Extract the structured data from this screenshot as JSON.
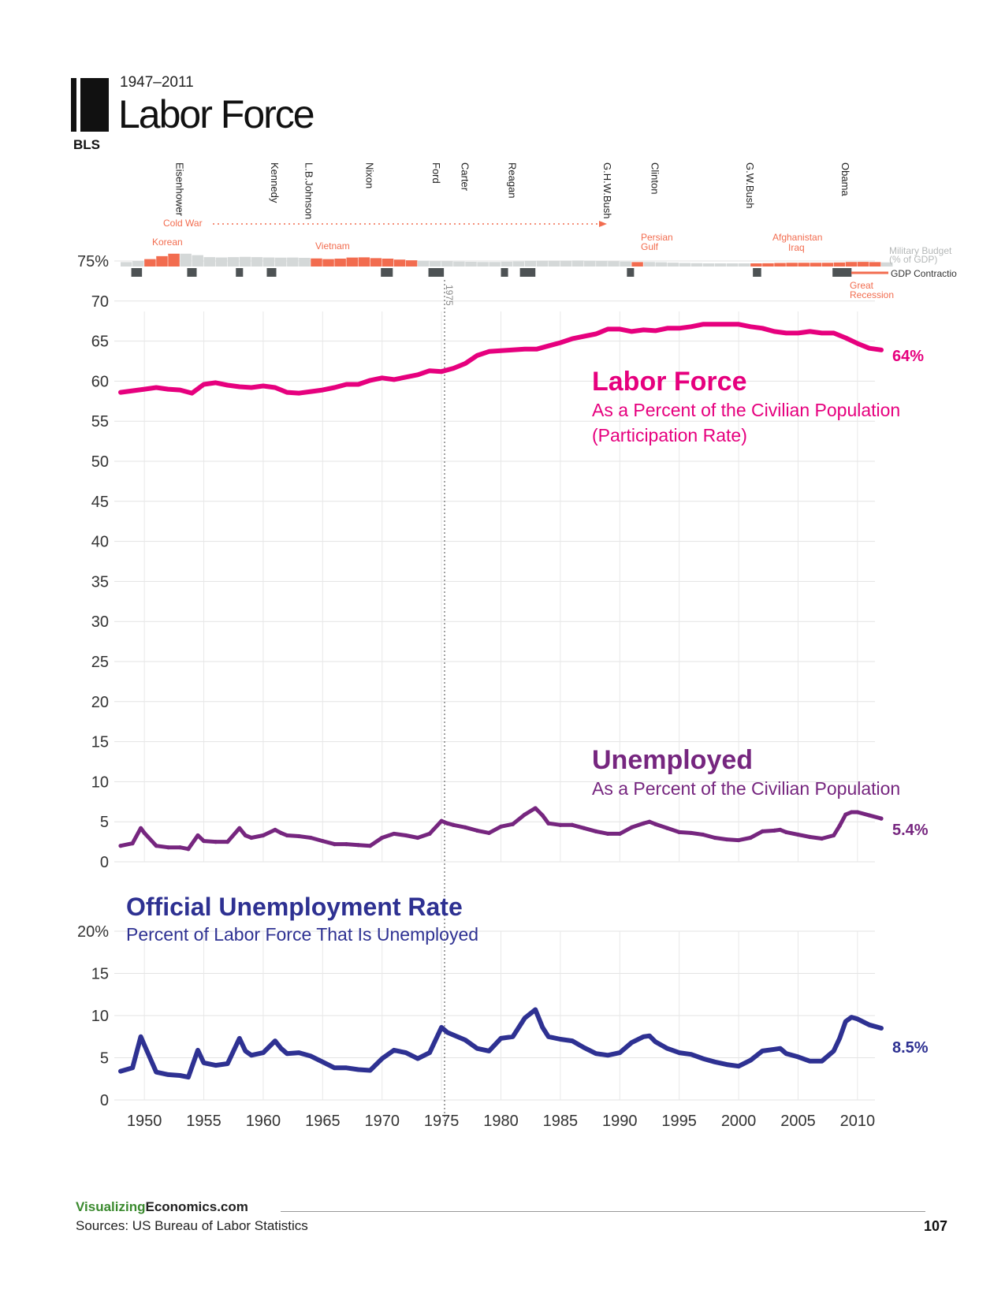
{
  "header": {
    "years": "1947–2011",
    "title": "Labor Force",
    "source_tag": "BLS"
  },
  "presidents": [
    "Eisenhower",
    "Kennedy",
    "L.B.Johnson",
    "Nixon",
    "Ford",
    "Carter",
    "Reagan",
    "G.H.W.Bush",
    "Clinton",
    "G.W.Bush",
    "Obama"
  ],
  "president_years": [
    1953.0,
    1961.0,
    1963.9,
    1969.0,
    1974.6,
    1977.0,
    1981.0,
    1989.0,
    1993.0,
    2001.0,
    2009.0
  ],
  "events": {
    "cold_war": "Cold War",
    "korean": "Korean",
    "vietnam": "Vietnam",
    "persian_gulf_1": "Persian",
    "persian_gulf_2": "Gulf",
    "afghanistan": "Afghanistan",
    "iraq": "Iraq",
    "great_recession_1": "Great",
    "great_recession_2": "Recession",
    "military_budget_1": "Military Budget",
    "military_budget_2": "(% of GDP)",
    "gdp_contraction": "GDP Contractio",
    "marker_1975": "1975"
  },
  "colors": {
    "labor": "#e6007e",
    "unemployed": "#76267f",
    "official": "#2e3192",
    "war": "#f26c4f",
    "budget_gray": "#d4d8d8",
    "recession": "#4d5254"
  },
  "chart_data": [
    {
      "type": "line",
      "title": "Labor Force",
      "subtitle_line1": "As a Percent of the Civilian Population",
      "subtitle_line2": "(Participation Rate)",
      "end_label": "64%",
      "axis_labels": [
        "75%",
        "70",
        "65",
        "60",
        "55",
        "50",
        "45",
        "40",
        "35",
        "30",
        "25",
        "20",
        "15",
        "10",
        "5",
        "0"
      ],
      "ylim": [
        0,
        75
      ],
      "xlim": [
        1948,
        2012
      ],
      "x": [
        1948,
        1949,
        1950,
        1951,
        1952,
        1953,
        1954,
        1955,
        1956,
        1957,
        1958,
        1959,
        1960,
        1961,
        1962,
        1963,
        1964,
        1965,
        1966,
        1967,
        1968,
        1969,
        1970,
        1971,
        1972,
        1973,
        1974,
        1975,
        1976,
        1977,
        1978,
        1979,
        1980,
        1981,
        1982,
        1983,
        1984,
        1985,
        1986,
        1987,
        1988,
        1989,
        1990,
        1991,
        1992,
        1993,
        1994,
        1995,
        1996,
        1997,
        1998,
        1999,
        2000,
        2001,
        2002,
        2003,
        2004,
        2005,
        2006,
        2007,
        2008,
        2009,
        2010,
        2011,
        2012
      ],
      "y": [
        58.6,
        58.8,
        59.0,
        59.2,
        59.0,
        58.9,
        58.5,
        59.6,
        59.8,
        59.5,
        59.3,
        59.2,
        59.4,
        59.2,
        58.6,
        58.5,
        58.7,
        58.9,
        59.2,
        59.6,
        59.6,
        60.1,
        60.4,
        60.2,
        60.5,
        60.8,
        61.3,
        61.2,
        61.6,
        62.2,
        63.2,
        63.7,
        63.8,
        63.9,
        64.0,
        64.0,
        64.4,
        64.8,
        65.3,
        65.6,
        65.9,
        66.5,
        66.5,
        66.2,
        66.4,
        66.3,
        66.6,
        66.6,
        66.8,
        67.1,
        67.1,
        67.1,
        67.1,
        66.8,
        66.6,
        66.2,
        66.0,
        66.0,
        66.2,
        66.0,
        66.0,
        65.4,
        64.7,
        64.1,
        63.9
      ]
    },
    {
      "type": "line",
      "title": "Unemployed",
      "subtitle_line1": "As a Percent of the Civilian Population",
      "end_label": "5.4%",
      "ylim": [
        0,
        75
      ],
      "xlim": [
        1948,
        2012
      ],
      "x": [
        1948,
        1949,
        1949.7,
        1950,
        1951,
        1952,
        1953,
        1953.7,
        1954.5,
        1955,
        1956,
        1957,
        1958,
        1958.5,
        1959,
        1960,
        1961,
        1961.5,
        1962,
        1963,
        1964,
        1965,
        1966,
        1967,
        1968,
        1969,
        1970,
        1971,
        1972,
        1973,
        1974,
        1975,
        1975.5,
        1976,
        1977,
        1978,
        1979,
        1980,
        1981,
        1982,
        1982.9,
        1983.5,
        1984,
        1985,
        1986,
        1987,
        1988,
        1989,
        1990,
        1991,
        1992,
        1992.5,
        1993,
        1994,
        1995,
        1996,
        1997,
        1998,
        1999,
        2000,
        2001,
        2002,
        2003,
        2003.5,
        2004,
        2005,
        2006,
        2007,
        2008,
        2008.5,
        2009,
        2009.5,
        2010,
        2011,
        2012
      ],
      "y": [
        2.0,
        2.3,
        4.2,
        3.6,
        2.0,
        1.8,
        1.8,
        1.6,
        3.3,
        2.6,
        2.5,
        2.5,
        4.2,
        3.3,
        3.0,
        3.3,
        4.0,
        3.6,
        3.3,
        3.2,
        3.0,
        2.6,
        2.2,
        2.2,
        2.1,
        2.0,
        3.0,
        3.5,
        3.3,
        3.0,
        3.5,
        5.1,
        4.8,
        4.6,
        4.3,
        3.9,
        3.6,
        4.4,
        4.7,
        5.9,
        6.7,
        5.8,
        4.8,
        4.6,
        4.6,
        4.2,
        3.8,
        3.5,
        3.5,
        4.3,
        4.8,
        5.0,
        4.7,
        4.2,
        3.7,
        3.6,
        3.4,
        3.0,
        2.8,
        2.7,
        3.0,
        3.8,
        3.9,
        4.0,
        3.7,
        3.4,
        3.1,
        2.9,
        3.3,
        4.5,
        5.9,
        6.2,
        6.2,
        5.8,
        5.4
      ]
    },
    {
      "type": "line",
      "title": "Official Unemployment Rate",
      "subtitle_line1": "Percent of Labor Force That Is Unemployed",
      "end_label": "8.5%",
      "axis_labels": [
        "20%",
        "15",
        "10",
        "5",
        "0"
      ],
      "x_tick_labels": [
        "1950",
        "1955",
        "1960",
        "1965",
        "1970",
        "1975",
        "1980",
        "1985",
        "1990",
        "1995",
        "2000",
        "2005",
        "2010"
      ],
      "ylim": [
        0,
        20
      ],
      "xlim": [
        1948,
        2012
      ],
      "x": [
        1948,
        1949,
        1949.7,
        1950,
        1951,
        1952,
        1953,
        1953.7,
        1954.5,
        1955,
        1956,
        1957,
        1958,
        1958.5,
        1959,
        1960,
        1961,
        1961.5,
        1962,
        1963,
        1964,
        1965,
        1966,
        1967,
        1968,
        1969,
        1970,
        1971,
        1972,
        1973,
        1974,
        1975,
        1975.5,
        1976,
        1977,
        1978,
        1979,
        1980,
        1981,
        1982,
        1982.9,
        1983.5,
        1984,
        1985,
        1986,
        1987,
        1988,
        1989,
        1990,
        1991,
        1992,
        1992.5,
        1993,
        1994,
        1995,
        1996,
        1997,
        1998,
        1999,
        2000,
        2001,
        2002,
        2003,
        2003.5,
        2004,
        2005,
        2006,
        2007,
        2008,
        2008.5,
        2009,
        2009.5,
        2010,
        2011,
        2012
      ],
      "y": [
        3.4,
        3.8,
        7.5,
        6.5,
        3.3,
        3.0,
        2.9,
        2.7,
        5.9,
        4.4,
        4.1,
        4.3,
        7.3,
        5.8,
        5.3,
        5.6,
        7.0,
        6.1,
        5.5,
        5.6,
        5.2,
        4.5,
        3.8,
        3.8,
        3.6,
        3.5,
        4.9,
        5.9,
        5.6,
        4.9,
        5.6,
        8.6,
        8.0,
        7.7,
        7.1,
        6.1,
        5.8,
        7.3,
        7.5,
        9.7,
        10.7,
        8.6,
        7.5,
        7.2,
        7.0,
        6.2,
        5.5,
        5.3,
        5.6,
        6.8,
        7.5,
        7.6,
        6.9,
        6.1,
        5.6,
        5.4,
        4.9,
        4.5,
        4.2,
        4.0,
        4.7,
        5.8,
        6.0,
        6.1,
        5.5,
        5.1,
        4.6,
        4.6,
        5.8,
        7.3,
        9.3,
        9.8,
        9.6,
        8.9,
        8.5
      ]
    }
  ],
  "footer": {
    "site_green": "Visualizing",
    "site_black": "Economics.com",
    "sources": "Sources: US Bureau of Labor Statistics",
    "page_number": "107"
  }
}
